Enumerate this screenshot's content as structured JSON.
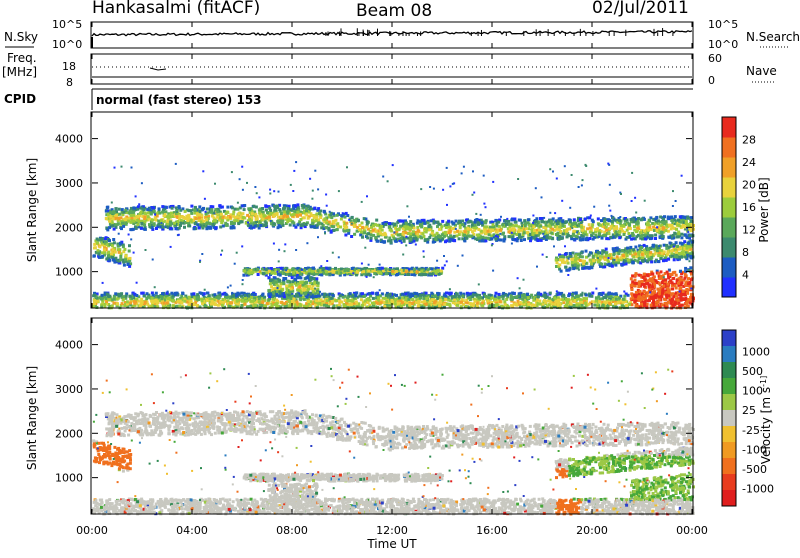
{
  "header": {
    "station": "Hankasalmi (fitACF)",
    "beam": "Beam 08",
    "date": "02/Jul/2011"
  },
  "noise_panel": {
    "left_label": "N.Sky",
    "right_label": "N.Search",
    "left_ticks": [
      "10^5",
      "10^0"
    ],
    "right_ticks": [
      "10^5",
      "10^0"
    ]
  },
  "freq_panel": {
    "left_label_line1": "Freq.",
    "left_label_line2": "[MHz]",
    "right_label": "Nave",
    "left_ticks": [
      "18",
      "8"
    ],
    "right_ticks": [
      "60",
      "0"
    ]
  },
  "cpid_panel": {
    "label": "CPID",
    "program": "normal (fast stereo) 153"
  },
  "chart_data": [
    {
      "type": "heatmap",
      "name": "Power",
      "ylabel": "Slant Range [km]",
      "ylim": [
        180,
        4600
      ],
      "y_ticks": [
        "1000",
        "2000",
        "3000",
        "4000"
      ],
      "colorbar_label": "Power [dB]",
      "colorbar_ticks": [
        "4",
        "8",
        "12",
        "16",
        "20",
        "24",
        "28"
      ],
      "colorbar_colors": [
        "#2030ff",
        "#1c5cc2",
        "#3c8a6e",
        "#5aa85a",
        "#9ccc3c",
        "#e8d23c",
        "#f0a028",
        "#f07020",
        "#e82a1e"
      ],
      "x_range_hours": [
        0,
        24
      ]
    },
    {
      "type": "heatmap",
      "name": "Velocity",
      "ylabel": "Slant Range [km]",
      "ylim": [
        180,
        4600
      ],
      "y_ticks": [
        "1000",
        "2000",
        "3000",
        "4000"
      ],
      "colorbar_label": "Velocity [m s^-1]",
      "colorbar_ticks": [
        "1000",
        "500",
        "100",
        "25",
        "-25",
        "-100",
        "-500",
        "-1000"
      ],
      "colorbar_colors": [
        "#2c40c8",
        "#2a7cc0",
        "#2e8a52",
        "#46a83a",
        "#9cc846",
        "#c8c8c0",
        "#f0c030",
        "#f09a22",
        "#f0701e",
        "#e83c1e",
        "#e01e1e"
      ],
      "x_range_hours": [
        0,
        24
      ]
    }
  ],
  "x_axis": {
    "label": "Time UT",
    "ticks": [
      "00:00",
      "04:00",
      "08:00",
      "12:00",
      "16:00",
      "20:00",
      "00:00"
    ]
  }
}
